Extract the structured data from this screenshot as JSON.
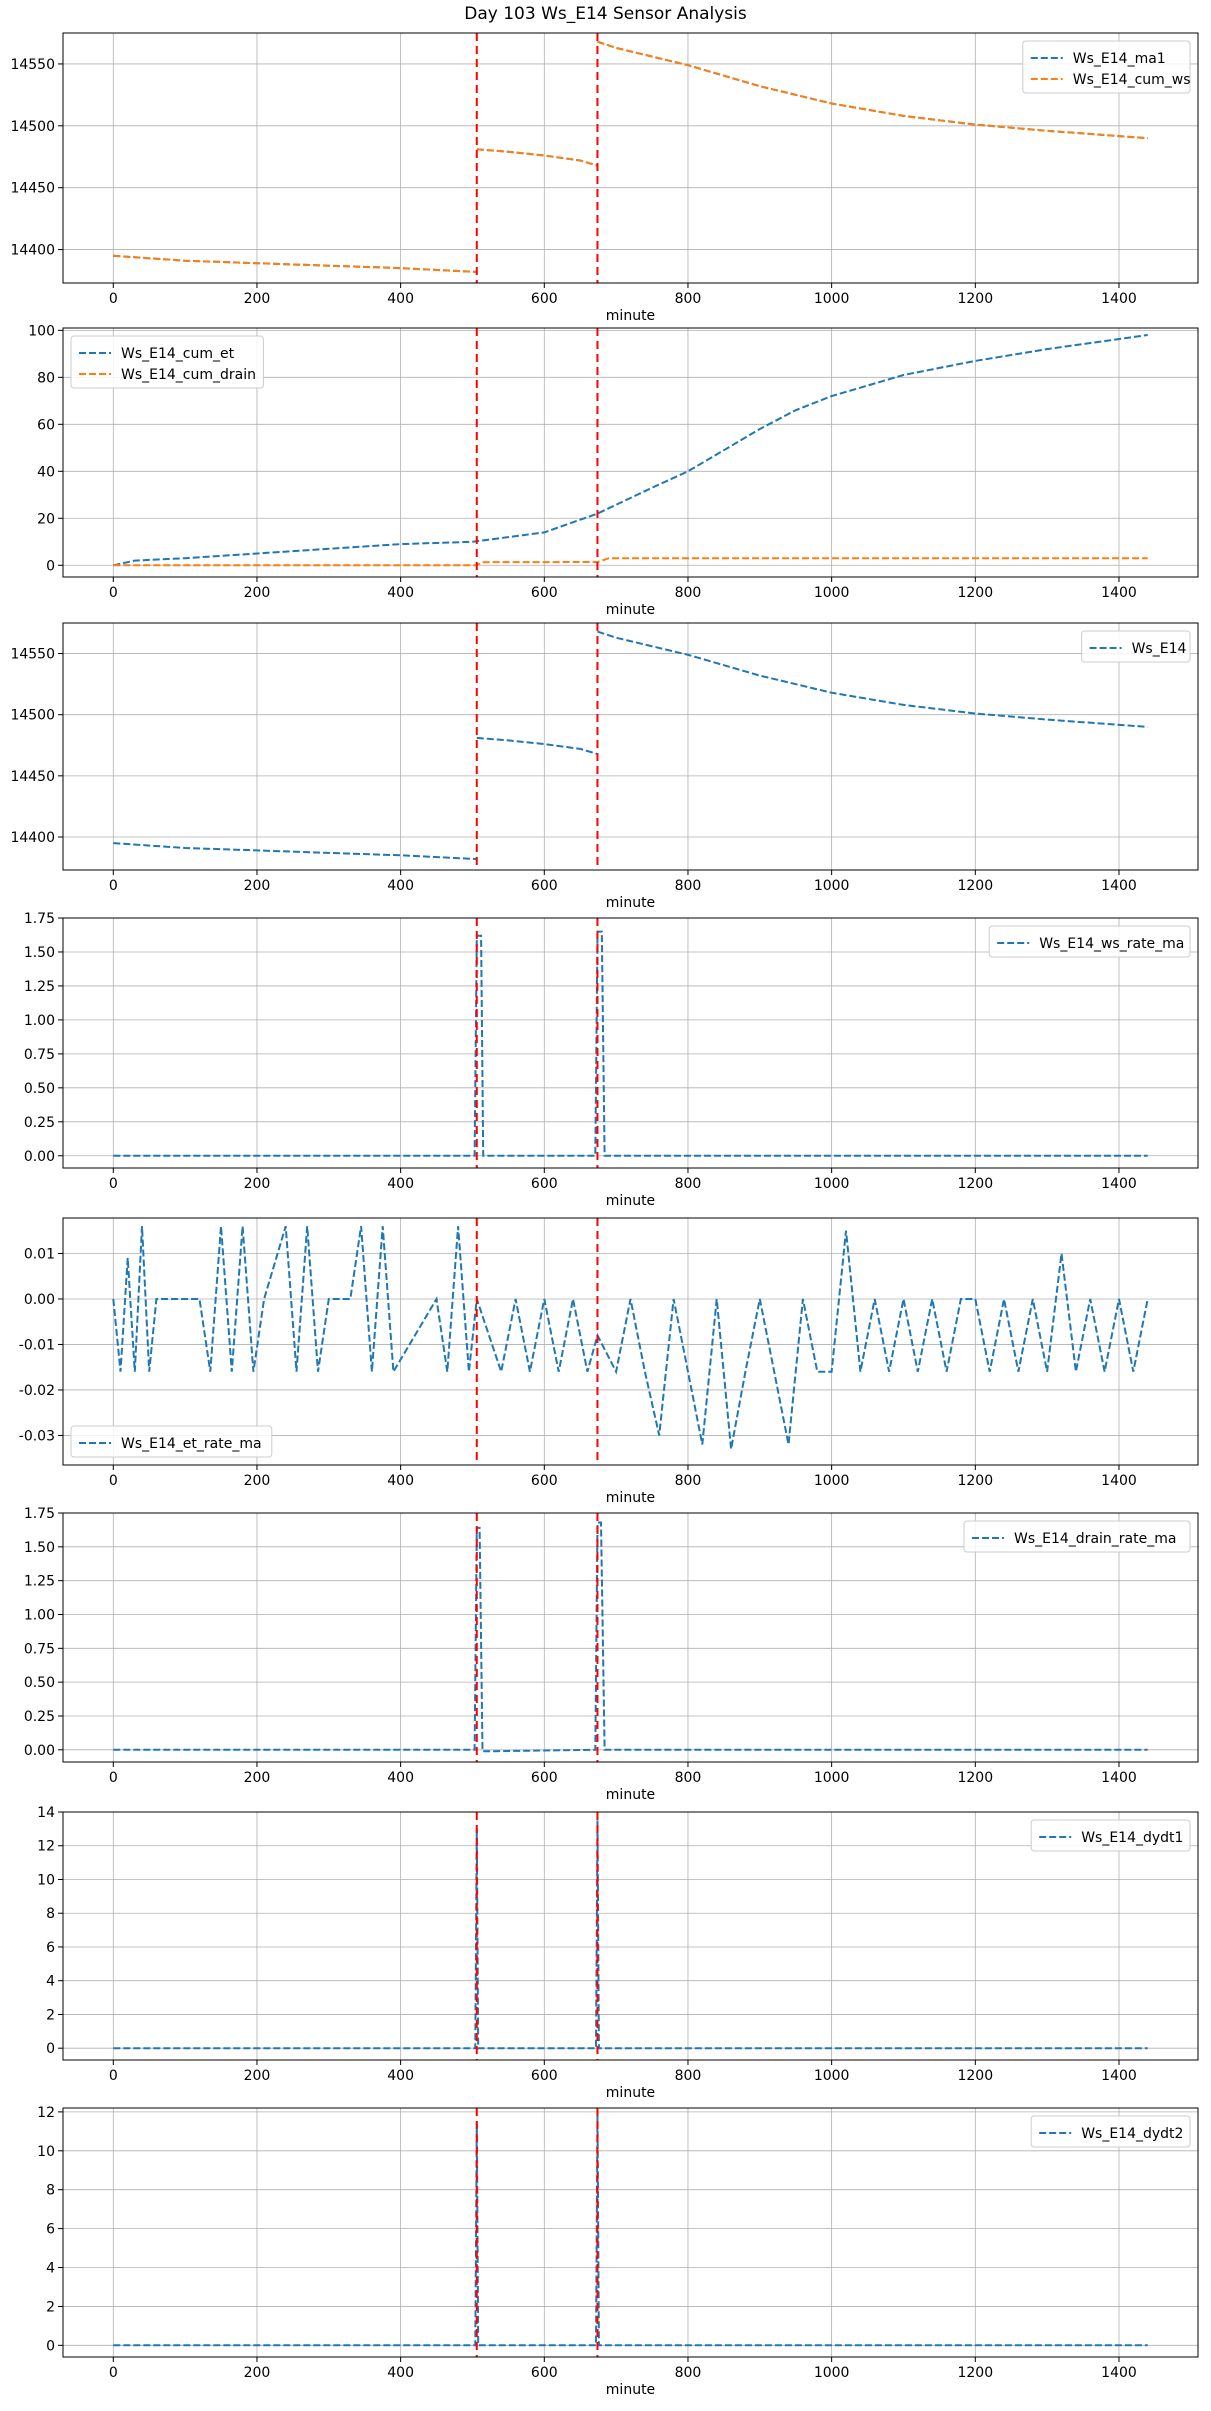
{
  "title": "Day 103 Ws_E14 Sensor Analysis",
  "colors": {
    "blue": "#1f77b4",
    "orange": "#ff7f0e",
    "event_line": "#ff0000",
    "grid": "#b0b0b0"
  },
  "chart_data": [
    {
      "type": "line",
      "xlabel": "minute",
      "xlim": [
        -70,
        1510
      ],
      "ylim": [
        14373,
        14575
      ],
      "x_ticks": [
        0,
        200,
        400,
        600,
        800,
        1000,
        1200,
        1400
      ],
      "y_ticks": [
        14400,
        14450,
        14500,
        14550
      ],
      "grid": true,
      "legend_position": "upper right",
      "event_lines": [
        506,
        674
      ],
      "series": [
        {
          "name": "Ws_E14_ma1",
          "color": "#1f77b4",
          "style": "dashed",
          "segments": [
            {
              "x": [
                0,
                100,
                200,
                300,
                400,
                505
              ],
              "y": [
                14395,
                14391,
                14389,
                14387,
                14385,
                14382
              ]
            },
            {
              "x": [
                506,
                550,
                600,
                650,
                673
              ],
              "y": [
                14481,
                14479,
                14476,
                14472,
                14468
              ]
            },
            {
              "x": [
                674,
                700,
                800,
                900,
                1000,
                1100,
                1200,
                1300,
                1440
              ],
              "y": [
                14568,
                14563,
                14549,
                14532,
                14518,
                14508,
                14501,
                14496,
                14490
              ]
            }
          ]
        },
        {
          "name": "Ws_E14_cum_ws",
          "color": "#ff7f0e",
          "style": "dashed",
          "segments": [
            {
              "x": [
                0,
                100,
                200,
                300,
                400,
                505
              ],
              "y": [
                14395,
                14391,
                14389,
                14387,
                14385,
                14382
              ]
            },
            {
              "x": [
                506,
                550,
                600,
                650,
                673
              ],
              "y": [
                14481,
                14479,
                14476,
                14472,
                14468
              ]
            },
            {
              "x": [
                674,
                700,
                800,
                900,
                1000,
                1100,
                1200,
                1300,
                1440
              ],
              "y": [
                14568,
                14563,
                14549,
                14532,
                14518,
                14508,
                14501,
                14496,
                14490
              ]
            }
          ]
        }
      ]
    },
    {
      "type": "line",
      "xlabel": "minute",
      "xlim": [
        -70,
        1510
      ],
      "ylim": [
        -5,
        101
      ],
      "x_ticks": [
        0,
        200,
        400,
        600,
        800,
        1000,
        1200,
        1400
      ],
      "y_ticks": [
        0,
        20,
        40,
        60,
        80,
        100
      ],
      "grid": true,
      "legend_position": "upper left",
      "event_lines": [
        506,
        674
      ],
      "series": [
        {
          "name": "Ws_E14_cum_et",
          "color": "#1f77b4",
          "style": "dashed",
          "segments": [
            {
              "x": [
                0,
                30,
                100,
                200,
                300,
                400,
                500,
                600,
                674,
                750,
                800,
                850,
                900,
                950,
                1000,
                1100,
                1200,
                1300,
                1440
              ],
              "y": [
                0,
                2,
                3,
                5,
                7,
                9,
                10,
                14,
                22,
                33,
                40,
                49,
                58,
                66,
                72,
                81,
                87,
                92,
                98
              ]
            }
          ]
        },
        {
          "name": "Ws_E14_cum_drain",
          "color": "#ff7f0e",
          "style": "dashed",
          "segments": [
            {
              "x": [
                0,
                505,
                515,
                674,
                690,
                1440
              ],
              "y": [
                0,
                0,
                1.3,
                1.4,
                3,
                3
              ]
            }
          ]
        }
      ]
    },
    {
      "type": "line",
      "xlabel": "minute",
      "xlim": [
        -70,
        1510
      ],
      "ylim": [
        14373,
        14575
      ],
      "x_ticks": [
        0,
        200,
        400,
        600,
        800,
        1000,
        1200,
        1400
      ],
      "y_ticks": [
        14400,
        14450,
        14500,
        14550
      ],
      "grid": true,
      "legend_position": "upper right",
      "event_lines": [
        506,
        674
      ],
      "series": [
        {
          "name": "Ws_E14",
          "color": "#1f77b4",
          "style": "dashed",
          "segments": [
            {
              "x": [
                0,
                100,
                200,
                300,
                400,
                505
              ],
              "y": [
                14395,
                14391,
                14389,
                14387,
                14385,
                14382
              ]
            },
            {
              "x": [
                506,
                550,
                600,
                650,
                673
              ],
              "y": [
                14481,
                14479,
                14476,
                14472,
                14468
              ]
            },
            {
              "x": [
                674,
                700,
                800,
                900,
                1000,
                1100,
                1200,
                1300,
                1440
              ],
              "y": [
                14568,
                14563,
                14549,
                14532,
                14518,
                14508,
                14501,
                14496,
                14490
              ]
            }
          ]
        }
      ]
    },
    {
      "type": "line",
      "xlabel": "minute",
      "xlim": [
        -70,
        1510
      ],
      "ylim": [
        -0.09,
        1.75
      ],
      "x_ticks": [
        0,
        200,
        400,
        600,
        800,
        1000,
        1200,
        1400
      ],
      "y_ticks": [
        0.0,
        0.25,
        0.5,
        0.75,
        1.0,
        1.25,
        1.5,
        1.75
      ],
      "y_tick_labels": [
        "0.00",
        "0.25",
        "0.50",
        "0.75",
        "1.00",
        "1.25",
        "1.50",
        "1.75"
      ],
      "grid": true,
      "legend_position": "upper right",
      "event_lines": [
        506,
        674
      ],
      "series": [
        {
          "name": "Ws_E14_ws_rate_ma",
          "color": "#1f77b4",
          "style": "dashed",
          "segments": [
            {
              "x": [
                0,
                503,
                506,
                512,
                515,
                671,
                674,
                680,
                684,
                1440
              ],
              "y": [
                0,
                0,
                1.62,
                1.62,
                0,
                0,
                1.65,
                1.65,
                0,
                0
              ]
            }
          ]
        }
      ]
    },
    {
      "type": "line",
      "xlabel": "minute",
      "xlim": [
        -70,
        1510
      ],
      "ylim": [
        -0.0365,
        0.0178
      ],
      "x_ticks": [
        0,
        200,
        400,
        600,
        800,
        1000,
        1200,
        1400
      ],
      "y_ticks": [
        -0.03,
        -0.02,
        -0.01,
        0.0,
        0.01
      ],
      "y_tick_labels": [
        "-0.03",
        "-0.02",
        "-0.01",
        "0.00",
        "0.01"
      ],
      "grid": true,
      "legend_position": "lower left",
      "event_lines": [
        506,
        674
      ],
      "series": [
        {
          "name": "Ws_E14_et_rate_ma",
          "color": "#1f77b4",
          "style": "dashed",
          "segments": [
            {
              "x": [
                0,
                10,
                20,
                30,
                40,
                50,
                60,
                120,
                135,
                150,
                165,
                180,
                195,
                210,
                240,
                255,
                270,
                285,
                300,
                330,
                345,
                360,
                375,
                390,
                450,
                465,
                480,
                495,
                506,
                540,
                560,
                580,
                600,
                620,
                640,
                660,
                674,
                700,
                720,
                740,
                760,
                780,
                800,
                820,
                840,
                860,
                880,
                900,
                920,
                940,
                960,
                980,
                1000,
                1020,
                1040,
                1060,
                1080,
                1100,
                1120,
                1140,
                1160,
                1180,
                1200,
                1220,
                1240,
                1260,
                1280,
                1300,
                1320,
                1340,
                1360,
                1380,
                1400,
                1420,
                1440
              ],
              "y": [
                0,
                -0.016,
                0.009,
                -0.016,
                0.016,
                -0.016,
                0,
                0,
                -0.016,
                0.016,
                -0.016,
                0.016,
                -0.016,
                0,
                0.016,
                -0.016,
                0.016,
                -0.016,
                0,
                0,
                0.016,
                -0.016,
                0.016,
                -0.016,
                0,
                -0.016,
                0.016,
                -0.016,
                0,
                -0.016,
                0,
                -0.016,
                0,
                -0.016,
                0,
                -0.016,
                -0.008,
                -0.016,
                0,
                -0.016,
                -0.03,
                0,
                -0.016,
                -0.032,
                0,
                -0.033,
                -0.016,
                0,
                -0.016,
                -0.032,
                0,
                -0.016,
                -0.016,
                0.015,
                -0.016,
                0,
                -0.016,
                0,
                -0.016,
                0,
                -0.016,
                0,
                0,
                -0.016,
                0,
                -0.016,
                0,
                -0.016,
                0.01,
                -0.016,
                0,
                -0.016,
                0,
                -0.016,
                0
              ]
            }
          ]
        }
      ]
    },
    {
      "type": "line",
      "xlabel": "minute",
      "xlim": [
        -70,
        1510
      ],
      "ylim": [
        -0.09,
        1.75
      ],
      "x_ticks": [
        0,
        200,
        400,
        600,
        800,
        1000,
        1200,
        1400
      ],
      "y_ticks": [
        0.0,
        0.25,
        0.5,
        0.75,
        1.0,
        1.25,
        1.5,
        1.75
      ],
      "y_tick_labels": [
        "0.00",
        "0.25",
        "0.50",
        "0.75",
        "1.00",
        "1.25",
        "1.50",
        "1.75"
      ],
      "grid": true,
      "legend_position": "upper right",
      "event_lines": [
        506,
        674
      ],
      "series": [
        {
          "name": "Ws_E14_drain_rate_ma",
          "color": "#1f77b4",
          "style": "dashed",
          "segments": [
            {
              "x": [
                0,
                503,
                506,
                510,
                514,
                530,
                671,
                674,
                679,
                684,
                700,
                1440
              ],
              "y": [
                0,
                0,
                1.64,
                1.64,
                -0.01,
                -0.01,
                0,
                1.68,
                1.68,
                0,
                0,
                0
              ]
            }
          ]
        }
      ]
    },
    {
      "type": "line",
      "xlabel": "minute",
      "xlim": [
        -70,
        1510
      ],
      "ylim": [
        -0.7,
        14
      ],
      "x_ticks": [
        0,
        200,
        400,
        600,
        800,
        1000,
        1200,
        1400
      ],
      "y_ticks": [
        0,
        2,
        4,
        6,
        8,
        10,
        12,
        14
      ],
      "grid": true,
      "legend_position": "upper right",
      "event_lines": [
        506,
        674
      ],
      "series": [
        {
          "name": "Ws_E14_dydt1",
          "color": "#1f77b4",
          "style": "dashed",
          "segments": [
            {
              "x": [
                0,
                504,
                506,
                508,
                672,
                674,
                676,
                1440
              ],
              "y": [
                0,
                0,
                13,
                0,
                0,
                13.5,
                0,
                0
              ]
            }
          ]
        }
      ]
    },
    {
      "type": "line",
      "xlabel": "minute",
      "xlim": [
        -70,
        1510
      ],
      "ylim": [
        -0.6,
        12.2
      ],
      "x_ticks": [
        0,
        200,
        400,
        600,
        800,
        1000,
        1200,
        1400
      ],
      "y_ticks": [
        0,
        2,
        4,
        6,
        8,
        10,
        12
      ],
      "grid": true,
      "legend_position": "upper right",
      "event_lines": [
        506,
        674
      ],
      "series": [
        {
          "name": "Ws_E14_dydt2",
          "color": "#1f77b4",
          "style": "dashed",
          "segments": [
            {
              "x": [
                0,
                504,
                506,
                508,
                672,
                674,
                676,
                1440
              ],
              "y": [
                0,
                0,
                11.5,
                0,
                0,
                12,
                0,
                0
              ]
            }
          ]
        }
      ]
    }
  ]
}
